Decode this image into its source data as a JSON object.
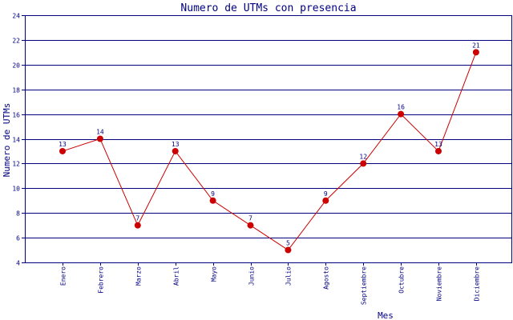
{
  "chart_data": {
    "type": "line",
    "title": "Numero de UTMs con presencia",
    "xlabel": "Mes",
    "ylabel": "Numero de UTMs",
    "ylim": [
      4,
      24
    ],
    "yticks": [
      4,
      6,
      8,
      10,
      12,
      14,
      16,
      18,
      20,
      22,
      24
    ],
    "grid": true,
    "categories": [
      "Enero",
      "Febrero",
      "Marzo",
      "Abril",
      "Mayo",
      "Junio",
      "Julio",
      "Agosto",
      "Septiembre",
      "Octubre",
      "Noviembre",
      "Diciembre"
    ],
    "series": [
      {
        "values": [
          13,
          14,
          7,
          13,
          9,
          7,
          5,
          9,
          12,
          16,
          13,
          21
        ],
        "color": "#cc0000"
      }
    ],
    "axis_color": "#000080"
  }
}
